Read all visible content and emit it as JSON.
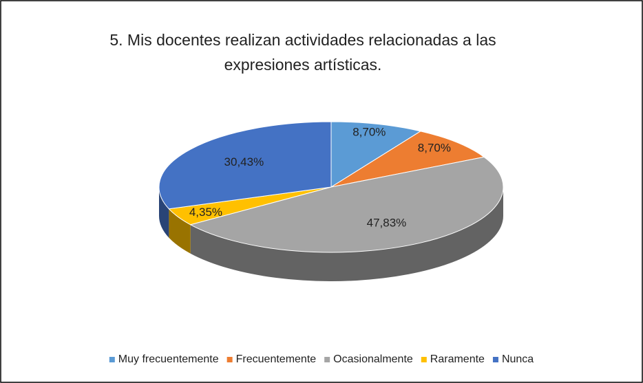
{
  "chart_data": {
    "type": "pie",
    "title": "5. Mis docentes realizan actividades relacionadas a las expresiones artísticas.",
    "categories": [
      "Muy frecuentemente",
      "Frecuentemente",
      "Ocasionalmente",
      "Raramente",
      "Nunca"
    ],
    "values": [
      8.7,
      8.7,
      47.83,
      4.35,
      30.43
    ],
    "value_labels": [
      "8,70%",
      "8,70%",
      "47,83%",
      "4,35%",
      "30,43%"
    ],
    "colors": [
      "#5b9bd5",
      "#ed7d31",
      "#a5a5a5",
      "#ffc000",
      "#4472c4"
    ],
    "legend": "bottom"
  }
}
